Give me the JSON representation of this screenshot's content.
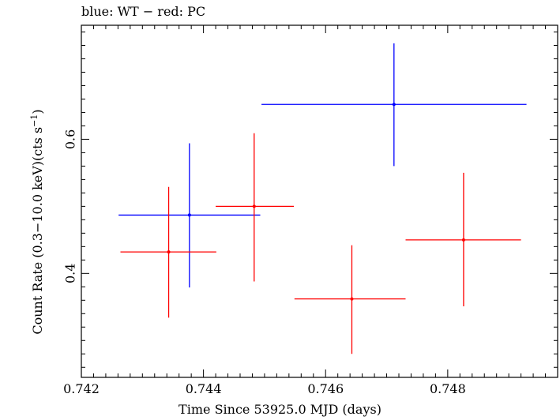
{
  "chart_data": {
    "type": "scatter",
    "title": "blue: WT − red: PC",
    "xlabel": "Time Since 53925.0 MJD (days)",
    "ylabel_main": "Count Rate (0.3−10.0 keV)(cts s",
    "ylabel_sup": "−1",
    "ylabel_tail": ")",
    "xlim": [
      0.742,
      0.7498
    ],
    "ylim": [
      0.245,
      0.77
    ],
    "log_y": false,
    "x_ticks": [
      0.742,
      0.744,
      0.746,
      0.748
    ],
    "x_tick_labels": [
      "0.742",
      "0.744",
      "0.746",
      "0.748"
    ],
    "y_ticks": [
      0.4,
      0.6
    ],
    "y_tick_labels": [
      "0.4",
      "0.6"
    ],
    "grid": false,
    "series": [
      {
        "color": "#0000ff",
        "points": [
          {
            "x": 0.74377,
            "xlo": 0.74261,
            "xhi": 0.74493,
            "y": 0.487,
            "ylo": 0.379,
            "yhi": 0.594
          },
          {
            "x": 0.74712,
            "xlo": 0.74495,
            "xhi": 0.74929,
            "y": 0.652,
            "ylo": 0.56,
            "yhi": 0.743
          }
        ]
      },
      {
        "color": "#ff0000",
        "points": [
          {
            "x": 0.74343,
            "xlo": 0.74264,
            "xhi": 0.74421,
            "y": 0.432,
            "ylo": 0.334,
            "yhi": 0.529
          },
          {
            "x": 0.74483,
            "xlo": 0.7442,
            "xhi": 0.74548,
            "y": 0.5,
            "ylo": 0.388,
            "yhi": 0.609
          },
          {
            "x": 0.74643,
            "xlo": 0.74549,
            "xhi": 0.74731,
            "y": 0.362,
            "ylo": 0.28,
            "yhi": 0.442
          },
          {
            "x": 0.74826,
            "xlo": 0.74731,
            "xhi": 0.7492,
            "y": 0.45,
            "ylo": 0.351,
            "yhi": 0.55
          }
        ]
      }
    ]
  }
}
